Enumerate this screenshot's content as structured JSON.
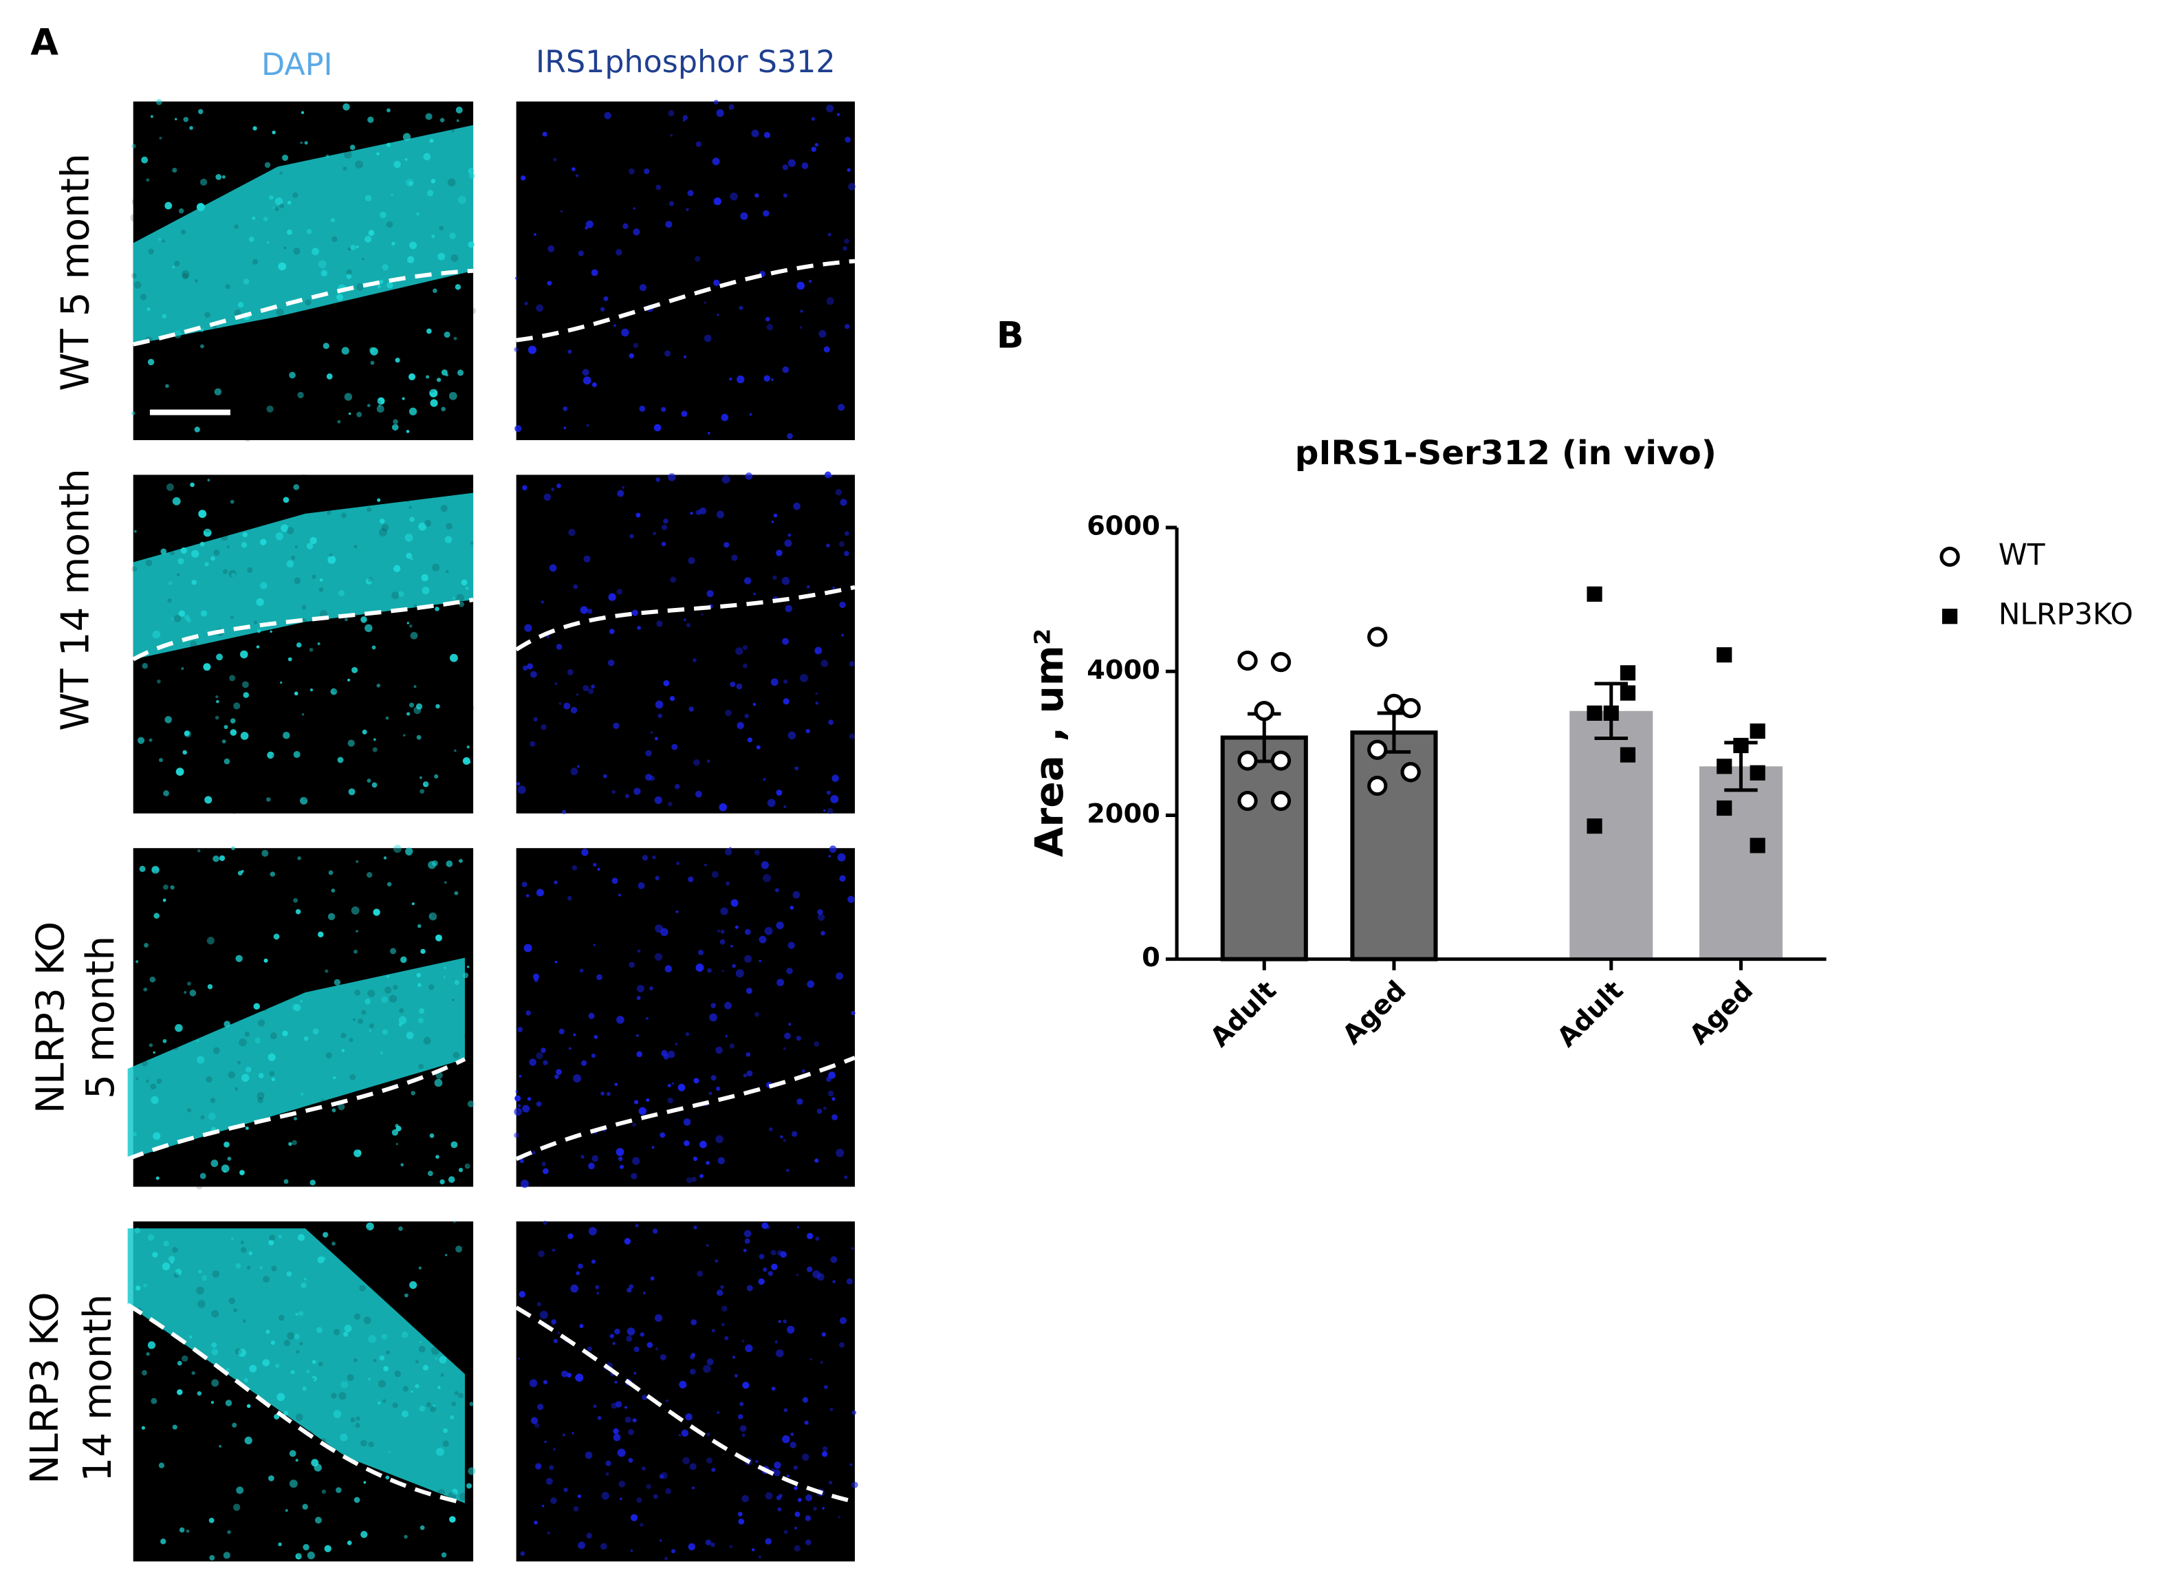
{
  "panel_a": {
    "label": "A",
    "columns": [
      "DAPI",
      "IRS1phosphor S312"
    ],
    "rows": [
      [
        "WT 5 month"
      ],
      [
        "WT 14 month"
      ],
      [
        "NLRP3 KO",
        "5 month"
      ],
      [
        "NLRP3 KO",
        "14 month"
      ]
    ]
  },
  "chart_data": {
    "type": "bar",
    "panel_label": "B",
    "title": "pIRS1-Ser312 (in vivo)",
    "ylabel": "Area , um²",
    "categories": [
      "Adult",
      "Aged",
      "Adult",
      "Aged"
    ],
    "ylim": [
      0,
      6000
    ],
    "yticks": [
      0,
      2000,
      4000,
      6000
    ],
    "series": [
      {
        "name": "WT",
        "color": "#6e6e6e",
        "edgecolor": "#000000",
        "marker": "circle",
        "values": [
          3080,
          3150,
          null,
          null
        ],
        "errors": [
          330,
          270,
          null,
          null
        ],
        "points": [
          [
            4150,
            4130,
            3450,
            2760,
            2760,
            2200,
            2200
          ],
          [
            4480,
            3490,
            3550,
            2910,
            2600,
            2410,
            2600
          ],
          null,
          null
        ]
      },
      {
        "name": "NLRP3KO",
        "color": "#a7a7ab",
        "marker": "square",
        "values": [
          null,
          null,
          3450,
          2680
        ],
        "errors": [
          null,
          null,
          380,
          330
        ],
        "points": [
          null,
          null,
          [
            5075,
            3980,
            3420,
            3420,
            2840,
            1850,
            3700
          ],
          [
            4230,
            3170,
            2970,
            2680,
            2590,
            2100,
            1580
          ]
        ]
      }
    ]
  }
}
